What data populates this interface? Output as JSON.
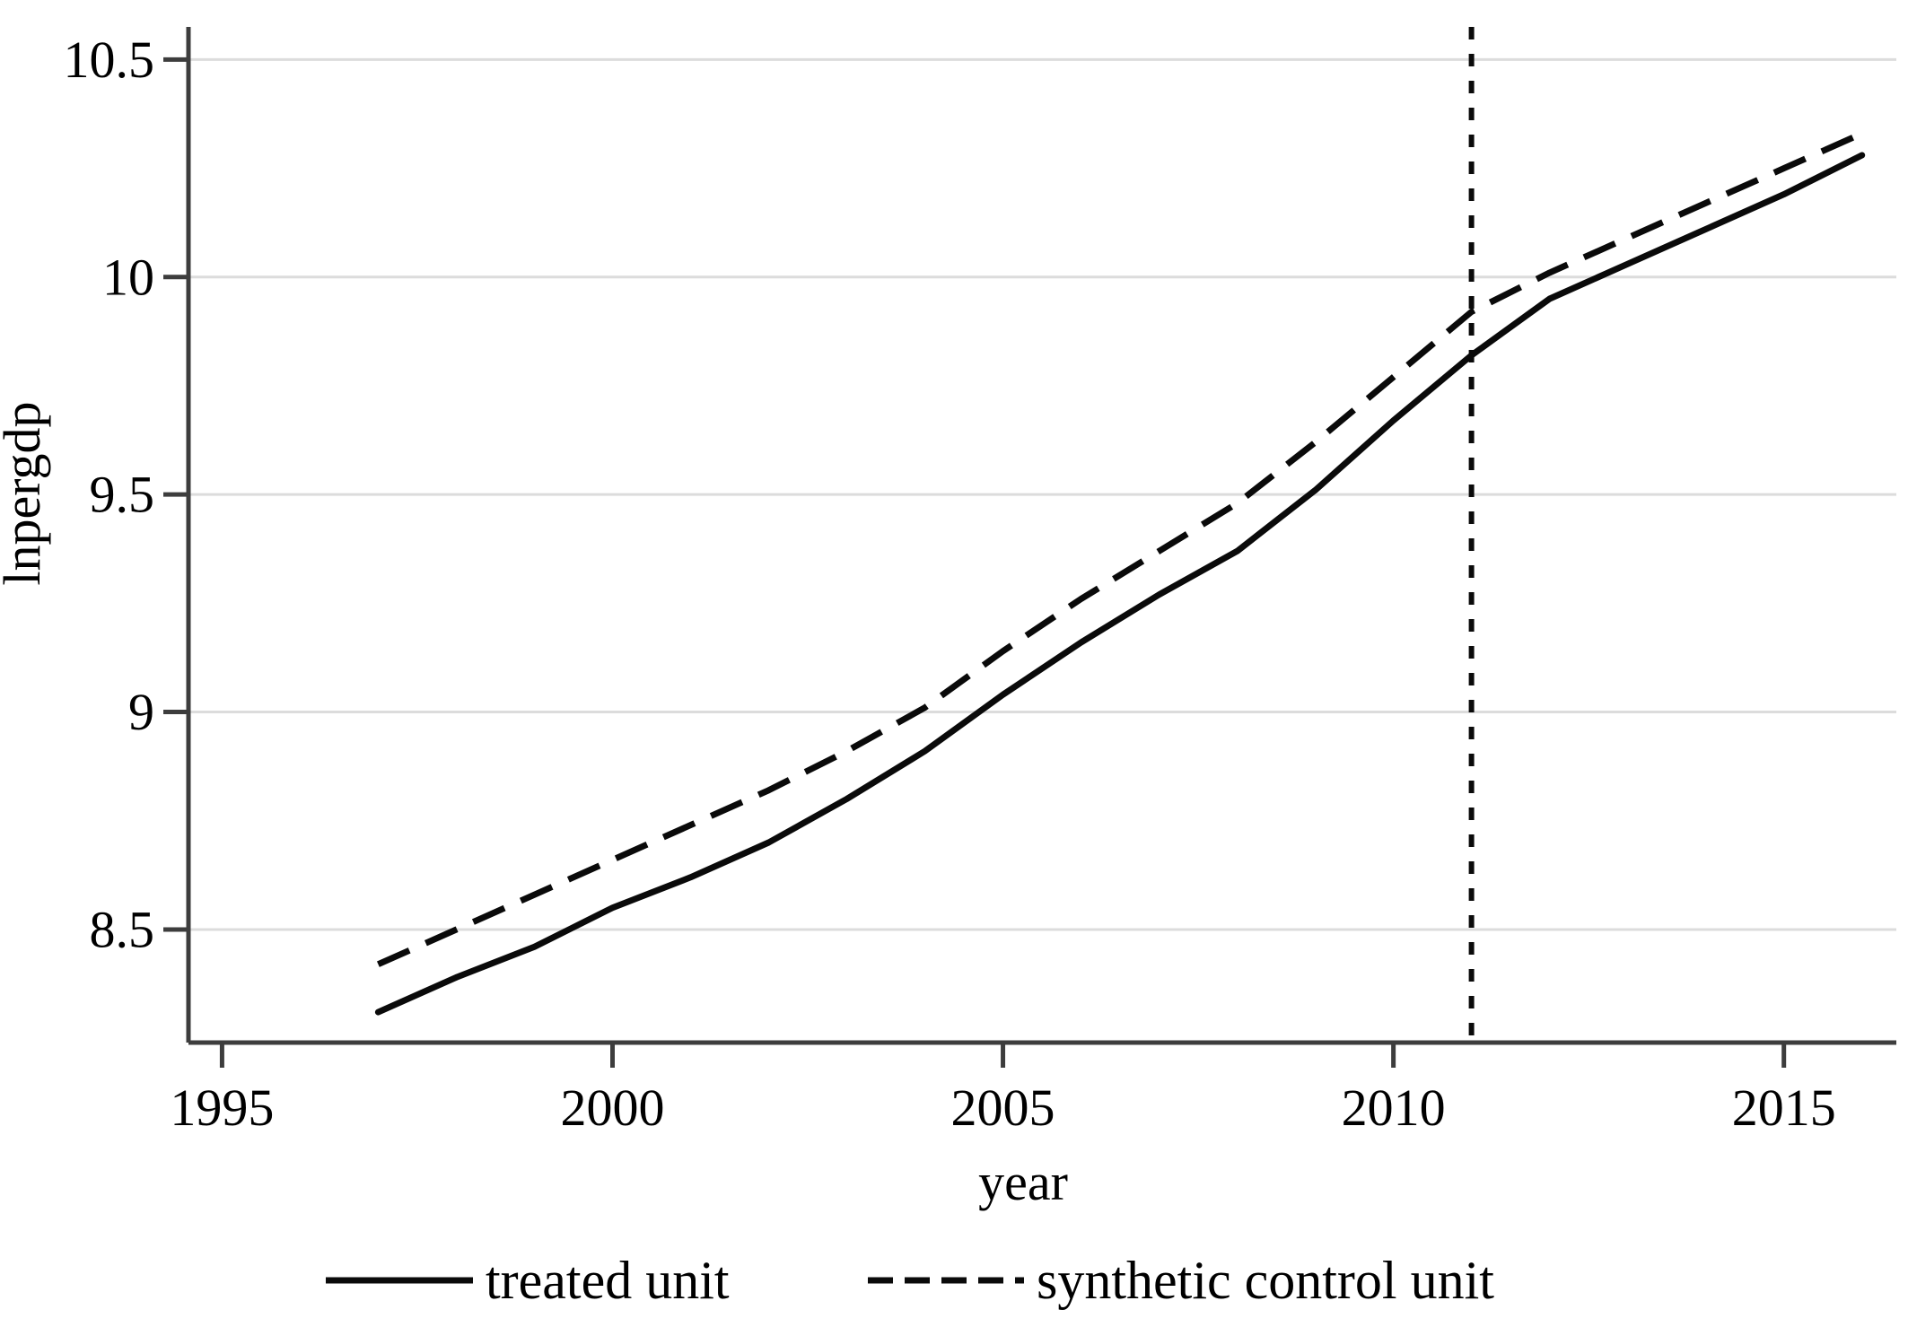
{
  "figure": {
    "y_axis_label": "lnpergdp",
    "x_axis_label": "year",
    "legend": {
      "treated_label": "treated unit",
      "synthetic_label": "synthetic control unit"
    },
    "colors": {
      "series_line": "#0a0a0a",
      "axis_line": "#3d3d3d",
      "tick": "#3d3d3d",
      "gridline": "#dcdcdc",
      "background": "#ffffff",
      "treatment_line": "#0a0a0a"
    }
  },
  "chart_data": {
    "type": "line",
    "title": "",
    "xlabel": "year",
    "ylabel": "lnpergdp",
    "grid": "horizontal-only",
    "legend_position": "bottom-center",
    "x_ticks": [
      1995,
      2000,
      2005,
      2010,
      2015
    ],
    "y_ticks": [
      8.5,
      9,
      9.5,
      10,
      10.5
    ],
    "y_tick_labels": [
      "8.5",
      "9",
      "9.5",
      "10",
      "10.5"
    ],
    "x_tick_labels": [
      "1995",
      "2000",
      "2005",
      "2010",
      "2015"
    ],
    "xlim": [
      1994.57,
      2016.44
    ],
    "ylim": [
      8.24,
      10.575
    ],
    "treatment_year": 2011,
    "x": [
      1997,
      1998,
      1999,
      2000,
      2001,
      2002,
      2003,
      2004,
      2005,
      2006,
      2007,
      2008,
      2009,
      2010,
      2011,
      2012,
      2013,
      2014,
      2015,
      2016
    ],
    "series": [
      {
        "name": "treated unit",
        "style": "solid",
        "values": [
          8.31,
          8.39,
          8.46,
          8.55,
          8.62,
          8.7,
          8.8,
          8.91,
          9.04,
          9.16,
          9.27,
          9.37,
          9.51,
          9.67,
          9.82,
          9.95,
          10.03,
          10.11,
          10.19,
          10.28
        ]
      },
      {
        "name": "synthetic control unit",
        "style": "dashed",
        "values": [
          8.42,
          8.5,
          8.58,
          8.66,
          8.74,
          8.82,
          8.91,
          9.01,
          9.14,
          9.26,
          9.37,
          9.48,
          9.62,
          9.77,
          9.92,
          10.01,
          10.09,
          10.17,
          10.25,
          10.33
        ]
      }
    ]
  }
}
